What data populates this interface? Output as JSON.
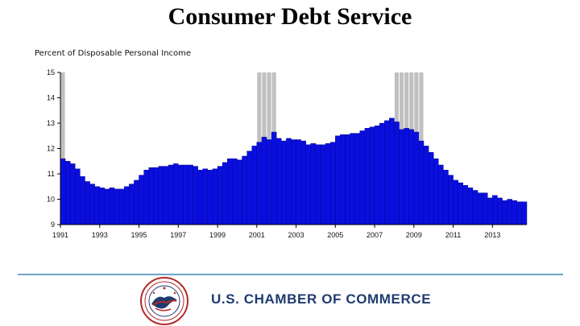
{
  "title": "Consumer Debt Service",
  "unit_label": "Percent of Disposable Personal Income",
  "organization": "U.S. CHAMBER OF COMMERCE",
  "colors": {
    "bar_fill": "#0a0fe0",
    "bar_stroke": "#00007a",
    "recession_shade": "#c0c0c0",
    "rule": "#6ea4c9",
    "org_text": "#1f3b6f"
  },
  "chart_data": {
    "type": "bar",
    "frequency": "quarterly",
    "start": "1991 Q1",
    "ylim": [
      9,
      15
    ],
    "yticks": [
      9,
      10,
      11,
      12,
      13,
      14,
      15
    ],
    "xticks": [
      "1991",
      "1993",
      "1995",
      "1997",
      "1999",
      "2001",
      "2003",
      "2005",
      "2007",
      "2009",
      "2011",
      "2013"
    ],
    "grid": false,
    "values": [
      11.6,
      11.5,
      11.4,
      11.2,
      10.9,
      10.7,
      10.6,
      10.5,
      10.45,
      10.4,
      10.45,
      10.4,
      10.4,
      10.5,
      10.6,
      10.75,
      10.95,
      11.15,
      11.25,
      11.25,
      11.3,
      11.3,
      11.35,
      11.4,
      11.35,
      11.35,
      11.35,
      11.3,
      11.15,
      11.2,
      11.15,
      11.2,
      11.3,
      11.45,
      11.6,
      11.6,
      11.55,
      11.7,
      11.9,
      12.1,
      12.25,
      12.45,
      12.35,
      12.65,
      12.4,
      12.3,
      12.4,
      12.35,
      12.35,
      12.3,
      12.15,
      12.2,
      12.15,
      12.15,
      12.2,
      12.25,
      12.5,
      12.55,
      12.55,
      12.6,
      12.6,
      12.7,
      12.8,
      12.85,
      12.9,
      13.0,
      13.1,
      13.2,
      13.05,
      12.75,
      12.8,
      12.75,
      12.65,
      12.3,
      12.1,
      11.85,
      11.6,
      11.35,
      11.15,
      10.95,
      10.75,
      10.65,
      10.55,
      10.45,
      10.35,
      10.25,
      10.25,
      10.05,
      10.15,
      10.05,
      9.95,
      10.0,
      9.95,
      9.9,
      9.9
    ],
    "recessions": [
      {
        "start": "1991 Q1",
        "end": "1991 Q1"
      },
      {
        "start": "2001 Q1",
        "end": "2001 Q4"
      },
      {
        "start": "2008 Q1",
        "end": "2009 Q2"
      }
    ]
  }
}
